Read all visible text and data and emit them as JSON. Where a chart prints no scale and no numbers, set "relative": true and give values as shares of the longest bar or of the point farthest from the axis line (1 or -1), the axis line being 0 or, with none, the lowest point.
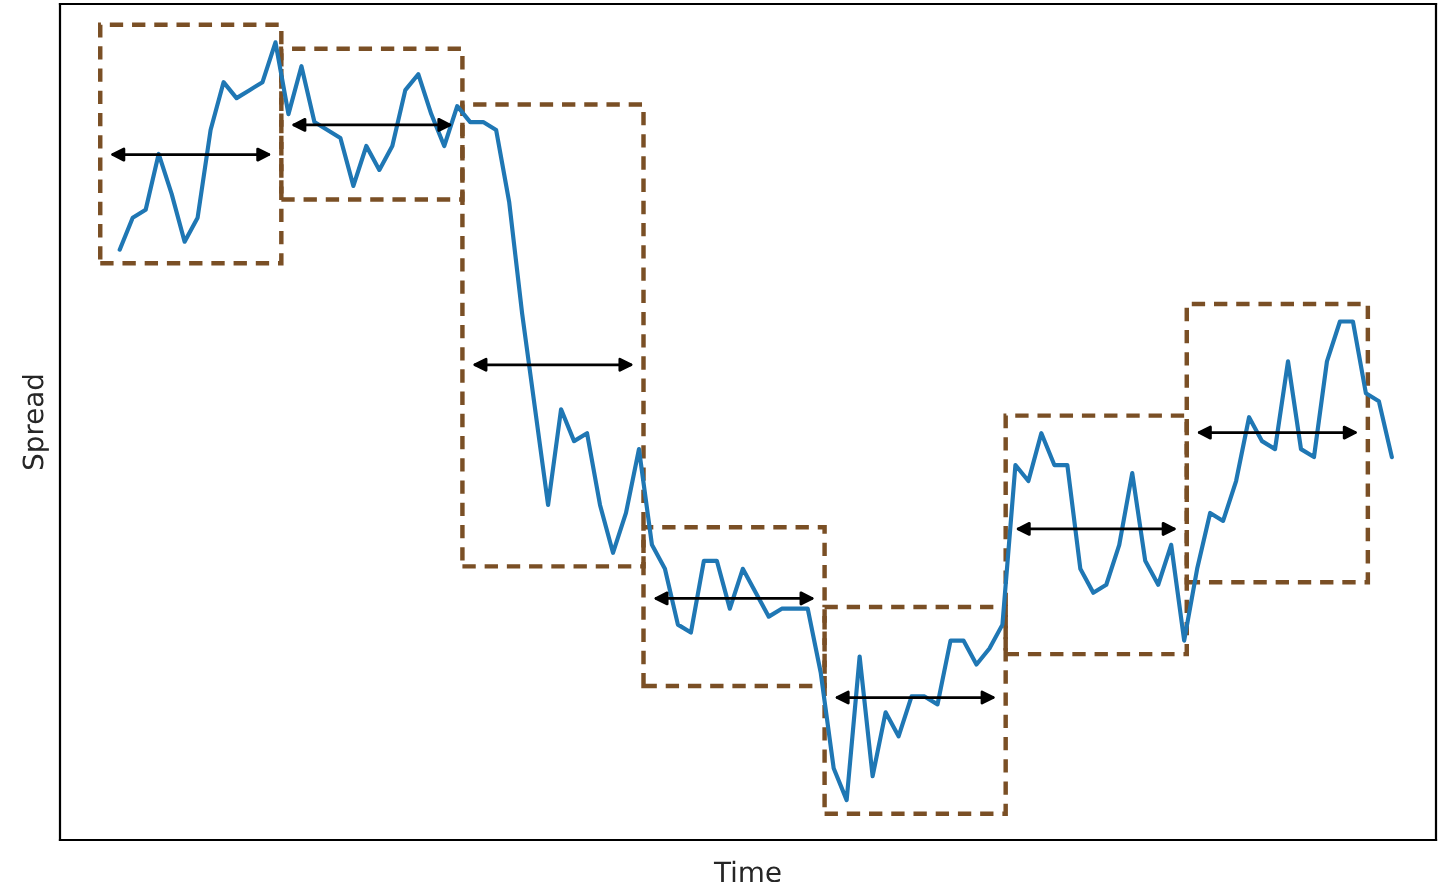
{
  "chart_data": {
    "type": "line",
    "xlabel": "Time",
    "ylabel": "Spread",
    "relative": true,
    "categories": [
      null,
      null,
      null,
      null,
      null,
      null,
      null,
      null,
      null,
      null,
      null,
      null,
      null,
      null,
      null,
      null,
      null,
      null,
      null,
      null,
      null,
      null,
      null,
      null,
      null,
      null,
      null,
      null,
      null,
      null,
      null,
      null,
      null,
      null,
      null,
      null,
      null,
      null,
      null,
      null,
      null,
      null,
      null,
      null,
      null,
      null,
      null,
      null,
      null,
      null,
      null,
      null,
      null,
      null,
      null,
      null,
      null,
      null,
      null,
      null,
      null,
      null,
      null,
      null,
      null,
      null,
      null,
      null,
      null,
      null,
      null,
      null,
      null,
      null,
      null,
      null,
      null,
      null,
      null,
      null,
      null,
      null,
      null,
      null,
      null,
      null,
      null,
      null,
      null,
      null,
      null,
      null,
      null,
      null,
      null,
      null,
      null,
      null,
      null
    ],
    "series": [
      {
        "color": "#1f77b4",
        "values": [
          0.74,
          0.78,
          0.79,
          0.86,
          0.81,
          0.75,
          0.78,
          0.89,
          0.95,
          0.93,
          0.94,
          0.95,
          1,
          0.91,
          0.97,
          0.9,
          0.89,
          0.88,
          0.82,
          0.87,
          0.84,
          0.87,
          0.94,
          0.96,
          0.91,
          0.87,
          0.92,
          0.9,
          0.9,
          0.89,
          0.8,
          0.66,
          0.54,
          0.42,
          0.54,
          0.5,
          0.51,
          0.42,
          0.36,
          0.41,
          0.49,
          0.37,
          0.34,
          0.27,
          0.26,
          0.35,
          0.35,
          0.29,
          0.34,
          0.31,
          0.28,
          0.29,
          0.29,
          0.29,
          0.21,
          0.09,
          0.05,
          0.23,
          0.08,
          0.16,
          0.13,
          0.18,
          0.18,
          0.17,
          0.25,
          0.25,
          0.22,
          0.24,
          0.27,
          0.47,
          0.45,
          0.51,
          0.47,
          0.47,
          0.34,
          0.31,
          0.32,
          0.37,
          0.46,
          0.35,
          0.32,
          0.37,
          0.25,
          0.34,
          0.41,
          0.4,
          0.45,
          0.53,
          0.5,
          0.49,
          0.6,
          0.49,
          0.48,
          0.6,
          0.65,
          0.65,
          0.56,
          0.55,
          0.48
        ]
      }
    ]
  }
}
